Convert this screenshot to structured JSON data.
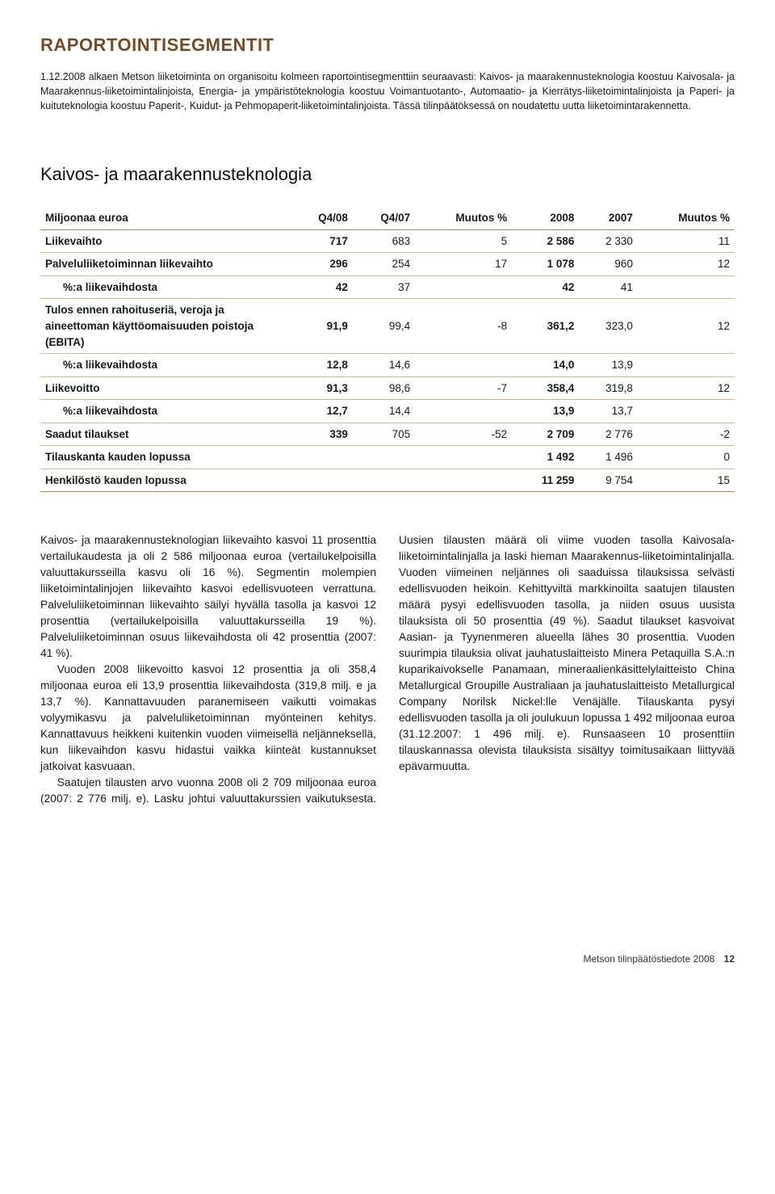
{
  "colors": {
    "title": "#754c29",
    "rule": "#b6884d",
    "row_rule": "#d2b794",
    "text": "#1a1a1a",
    "background": "#ffffff"
  },
  "typography": {
    "body_font": "Myriad Pro / Segoe UI / Arial",
    "body_size_pt": 10,
    "title_size_pt": 17,
    "section_title_size_pt": 17,
    "table_size_pt": 10
  },
  "page_title": "RAPORTOINTISEGMENTIT",
  "intro": "1.12.2008 alkaen Metson liiketoiminta on organisoitu kolmeen raportointisegmenttiin seuraavasti: Kaivos- ja maarakennusteknologia koostuu Kaivosala- ja Maarakennus-liiketoimintalinjoista, Energia- ja ympäristöteknologia koostuu Voimantuotanto-, Automaatio- ja Kierrätys-liiketoimintalinjoista ja Paperi- ja kuituteknologia koostuu Paperit-, Kuidut- ja Pehmopaperit-liiketoimintalinjoista. Tässä tilinpäätöksessä on noudatettu uutta liiketoimintarakennetta.",
  "section_title": "Kaivos- ja maarakennusteknologia",
  "table": {
    "columns": [
      "Miljoonaa euroa",
      "Q4/08",
      "Q4/07",
      "Muutos %",
      "2008",
      "2007",
      "Muutos %"
    ],
    "bold_cols": [
      0,
      1,
      4
    ],
    "col_widths_pct": [
      36,
      10,
      10,
      12,
      10,
      10,
      12
    ],
    "rows": [
      {
        "cells": [
          "Liikevaihto",
          "717",
          "683",
          "5",
          "2 586",
          "2 330",
          "11"
        ]
      },
      {
        "cells": [
          "Palveluliiketoiminnan liikevaihto",
          "296",
          "254",
          "17",
          "1 078",
          "960",
          "12"
        ]
      },
      {
        "indent": true,
        "cells": [
          "%:a liikevaihdosta",
          "42",
          "37",
          "",
          "42",
          "41",
          ""
        ]
      },
      {
        "cells": [
          "Tulos ennen rahoituseriä, veroja ja aineettoman käyttöomaisuuden poistoja (EBITA)",
          "91,9",
          "99,4",
          "-8",
          "361,2",
          "323,0",
          "12"
        ]
      },
      {
        "indent": true,
        "cells": [
          "%:a liikevaihdosta",
          "12,8",
          "14,6",
          "",
          "14,0",
          "13,9",
          ""
        ]
      },
      {
        "cells": [
          "Liikevoitto",
          "91,3",
          "98,6",
          "-7",
          "358,4",
          "319,8",
          "12"
        ]
      },
      {
        "indent": true,
        "cells": [
          "%:a liikevaihdosta",
          "12,7",
          "14,4",
          "",
          "13,9",
          "13,7",
          ""
        ]
      },
      {
        "cells": [
          "Saadut tilaukset",
          "339",
          "705",
          "-52",
          "2 709",
          "2 776",
          "-2"
        ]
      },
      {
        "cells": [
          "Tilauskanta kauden lopussa",
          "",
          "",
          "",
          "1 492",
          "1 496",
          "0"
        ]
      },
      {
        "cells": [
          "Henkilöstö kauden lopussa",
          "",
          "",
          "",
          "11 259",
          "9 754",
          "15"
        ]
      }
    ]
  },
  "body_paragraphs": [
    "Kaivos- ja maarakennusteknologian liikevaihto kasvoi 11 prosenttia vertailukaudesta ja oli 2 586 miljoonaa euroa (vertailukelpoisilla valuuttakursseilla kasvu oli 16 %). Segmentin molempien liiketoimintalinjojen liikevaihto kasvoi edellisvuoteen verrattuna. Palveluliiketoiminnan liikevaihto säilyi hyvällä tasolla ja kasvoi 12 prosenttia (vertailukelpoisilla valuuttakursseilla 19 %). Palveluliiketoiminnan osuus liikevaihdosta oli 42 prosenttia (2007: 41 %).",
    "Vuoden 2008 liikevoitto kasvoi 12 prosenttia ja oli 358,4 miljoonaa euroa eli 13,9 prosenttia liikevaihdosta (319,8 milj. e ja 13,7 %). Kannattavuuden paranemiseen vaikutti voimakas volyymikasvu ja palveluliiketoiminnan myönteinen kehitys. Kannattavuus heikkeni kuitenkin vuoden viimeisellä neljänneksellä, kun liikevaihdon kasvu hidastui vaikka kiinteät kustannukset jatkoivat kasvuaan.",
    "Saatujen tilausten arvo vuonna 2008 oli 2 709 miljoonaa euroa (2007: 2 776 milj. e). Lasku johtui valuuttakurssien vaikutuksesta. Uusien tilausten määrä oli viime vuoden tasolla Kaivosala-liiketoimintalinjalla ja laski hieman Maarakennus-liiketoimintalinjalla. Vuoden viimeinen neljännes oli saaduissa tilauksissa selvästi edellisvuoden heikoin. Kehittyviltä markkinoilta saatujen tilausten määrä pysyi edellisvuoden tasolla, ja niiden osuus uusista tilauksista oli 50 prosenttia (49 %). Saadut tilaukset kasvoivat Aasian- ja Tyynenmeren alueella lähes 30 prosenttia. Vuoden suurimpia tilauksia olivat jauhatuslaitteisto Minera Petaquilla S.A.:n kuparikaivokselle Panamaan, mineraalienkäsittelylaitteisto China Metallurgical Groupille Australiaan ja jauhatuslaitteisto Metallurgical Company Norilsk Nickel:lle Venäjälle. Tilauskanta pysyi edellisvuoden tasolla ja oli joulukuun lopussa 1 492 miljoonaa euroa (31.12.2007: 1 496 milj. e). Runsaaseen 10 prosenttiin tilauskannassa olevista tilauksista sisältyy toimitusaikaan liittyvää epävarmuutta."
  ],
  "footer": {
    "text": "Metson tilinpäätöstiedote 2008",
    "page": "12"
  }
}
